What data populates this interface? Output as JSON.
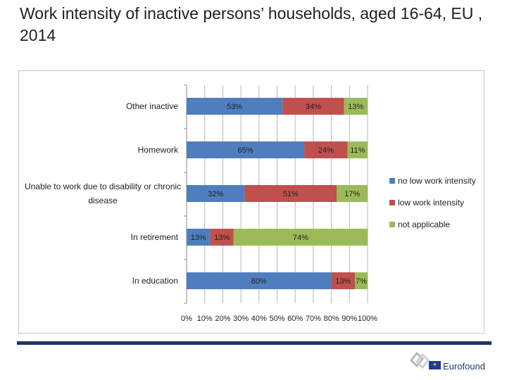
{
  "slide": {
    "title": "Work intensity of inactive persons’ households, aged 16-64, EU , 2014"
  },
  "brand": {
    "logo_text": "Eurofound",
    "accent": "#1c3566"
  },
  "chart_data": {
    "type": "bar",
    "orientation": "horizontal",
    "stacked": true,
    "title": "",
    "categories": [
      "Other inactive",
      "Homework",
      "Unable to work due to disability or chronic disease",
      "In retirement",
      "In education"
    ],
    "category_label_lines": [
      [
        "Other inactive"
      ],
      [
        "Homework"
      ],
      [
        "Unable to work due to disability or chronic",
        "disease"
      ],
      [
        "In retirement"
      ],
      [
        "In education"
      ]
    ],
    "series": [
      {
        "name": "no low work intensity",
        "color": "#4f7ebf",
        "values": [
          53,
          65,
          32,
          13,
          80
        ],
        "labels": [
          "53%",
          "65%",
          "32%",
          "13%",
          "80%"
        ]
      },
      {
        "name": "low work intensity",
        "color": "#c0504d",
        "values": [
          34,
          24,
          51,
          13,
          13
        ],
        "labels": [
          "34%",
          "24%",
          "51%",
          "13%",
          "13%"
        ]
      },
      {
        "name": "not applicable",
        "color": "#9bbb59",
        "values": [
          13,
          11,
          17,
          74,
          7
        ],
        "labels": [
          "13%",
          "11%",
          "17%",
          "74%",
          "7%"
        ]
      }
    ],
    "xlim": [
      0,
      100
    ],
    "x_ticks": [
      "0%",
      "10%",
      "20%",
      "30%",
      "40%",
      "50%",
      "60%",
      "70%",
      "80%",
      "90%",
      "100%"
    ],
    "grid": true,
    "legend": "right"
  }
}
